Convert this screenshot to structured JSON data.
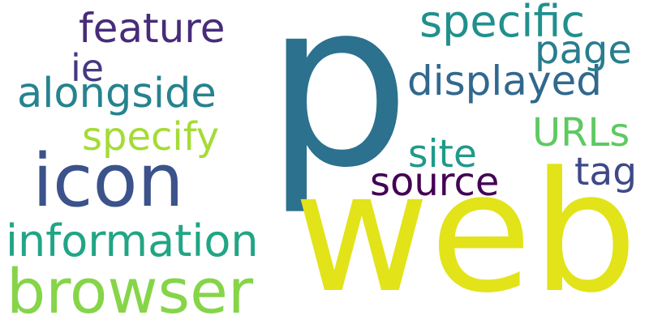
{
  "words": [
    {
      "text": "p",
      "color": "#2c718e"
    },
    {
      "text": "web",
      "color": "#e2e319"
    },
    {
      "text": "icon",
      "color": "#3b528b"
    },
    {
      "text": "browser",
      "color": "#86d549"
    },
    {
      "text": "information",
      "color": "#21a585"
    },
    {
      "text": "specific",
      "color": "#21908d"
    },
    {
      "text": "displayed",
      "color": "#31688e"
    },
    {
      "text": "alongside",
      "color": "#25838e"
    },
    {
      "text": "feature",
      "color": "#472c7a"
    },
    {
      "text": "specify",
      "color": "#a5db36"
    },
    {
      "text": "URLs",
      "color": "#5ec962"
    },
    {
      "text": "site",
      "color": "#1f9a8a"
    },
    {
      "text": "source",
      "color": "#440154"
    },
    {
      "text": "tag",
      "color": "#3e4989"
    },
    {
      "text": "page",
      "color": "#287d8e"
    },
    {
      "text": "ie",
      "color": "#443983"
    }
  ]
}
